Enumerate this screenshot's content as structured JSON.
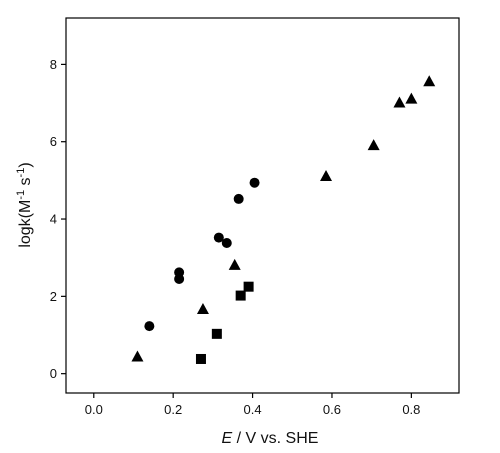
{
  "chart_data": {
    "type": "scatter",
    "xlabel_italic": "E",
    "xlabel_rest": " / V vs. SHE",
    "ylabel_prefix": "logk(M",
    "ylabel_exp1": "-1",
    "ylabel_mid": " s",
    "ylabel_exp2": "-1",
    "ylabel_suffix": ")",
    "xlim": [
      -0.07,
      0.92
    ],
    "ylim": [
      -0.5,
      9.2
    ],
    "x_ticks": [
      0.0,
      0.2,
      0.4,
      0.6,
      0.8
    ],
    "x_tick_labels": [
      "0.0",
      "0.2",
      "0.4",
      "0.6",
      "0.8"
    ],
    "y_ticks": [
      0,
      2,
      4,
      6,
      8
    ],
    "y_tick_labels": [
      "0",
      "2",
      "4",
      "6",
      "8"
    ],
    "grid": false,
    "legend": "none",
    "series": [
      {
        "marker": "circle",
        "color": "#000000",
        "points": [
          [
            0.14,
            1.23
          ],
          [
            0.215,
            2.62
          ],
          [
            0.215,
            2.45
          ],
          [
            0.315,
            3.52
          ],
          [
            0.335,
            3.38
          ],
          [
            0.365,
            4.52
          ],
          [
            0.405,
            4.94
          ]
        ]
      },
      {
        "marker": "square",
        "color": "#000000",
        "points": [
          [
            0.27,
            0.38
          ],
          [
            0.31,
            1.03
          ],
          [
            0.37,
            2.02
          ],
          [
            0.39,
            2.25
          ]
        ]
      },
      {
        "marker": "triangle",
        "color": "#000000",
        "points": [
          [
            0.11,
            0.43
          ],
          [
            0.275,
            1.66
          ],
          [
            0.355,
            2.8
          ],
          [
            0.585,
            5.1
          ],
          [
            0.705,
            5.9
          ],
          [
            0.77,
            7.0
          ],
          [
            0.8,
            7.1
          ],
          [
            0.845,
            7.55
          ]
        ]
      }
    ]
  }
}
